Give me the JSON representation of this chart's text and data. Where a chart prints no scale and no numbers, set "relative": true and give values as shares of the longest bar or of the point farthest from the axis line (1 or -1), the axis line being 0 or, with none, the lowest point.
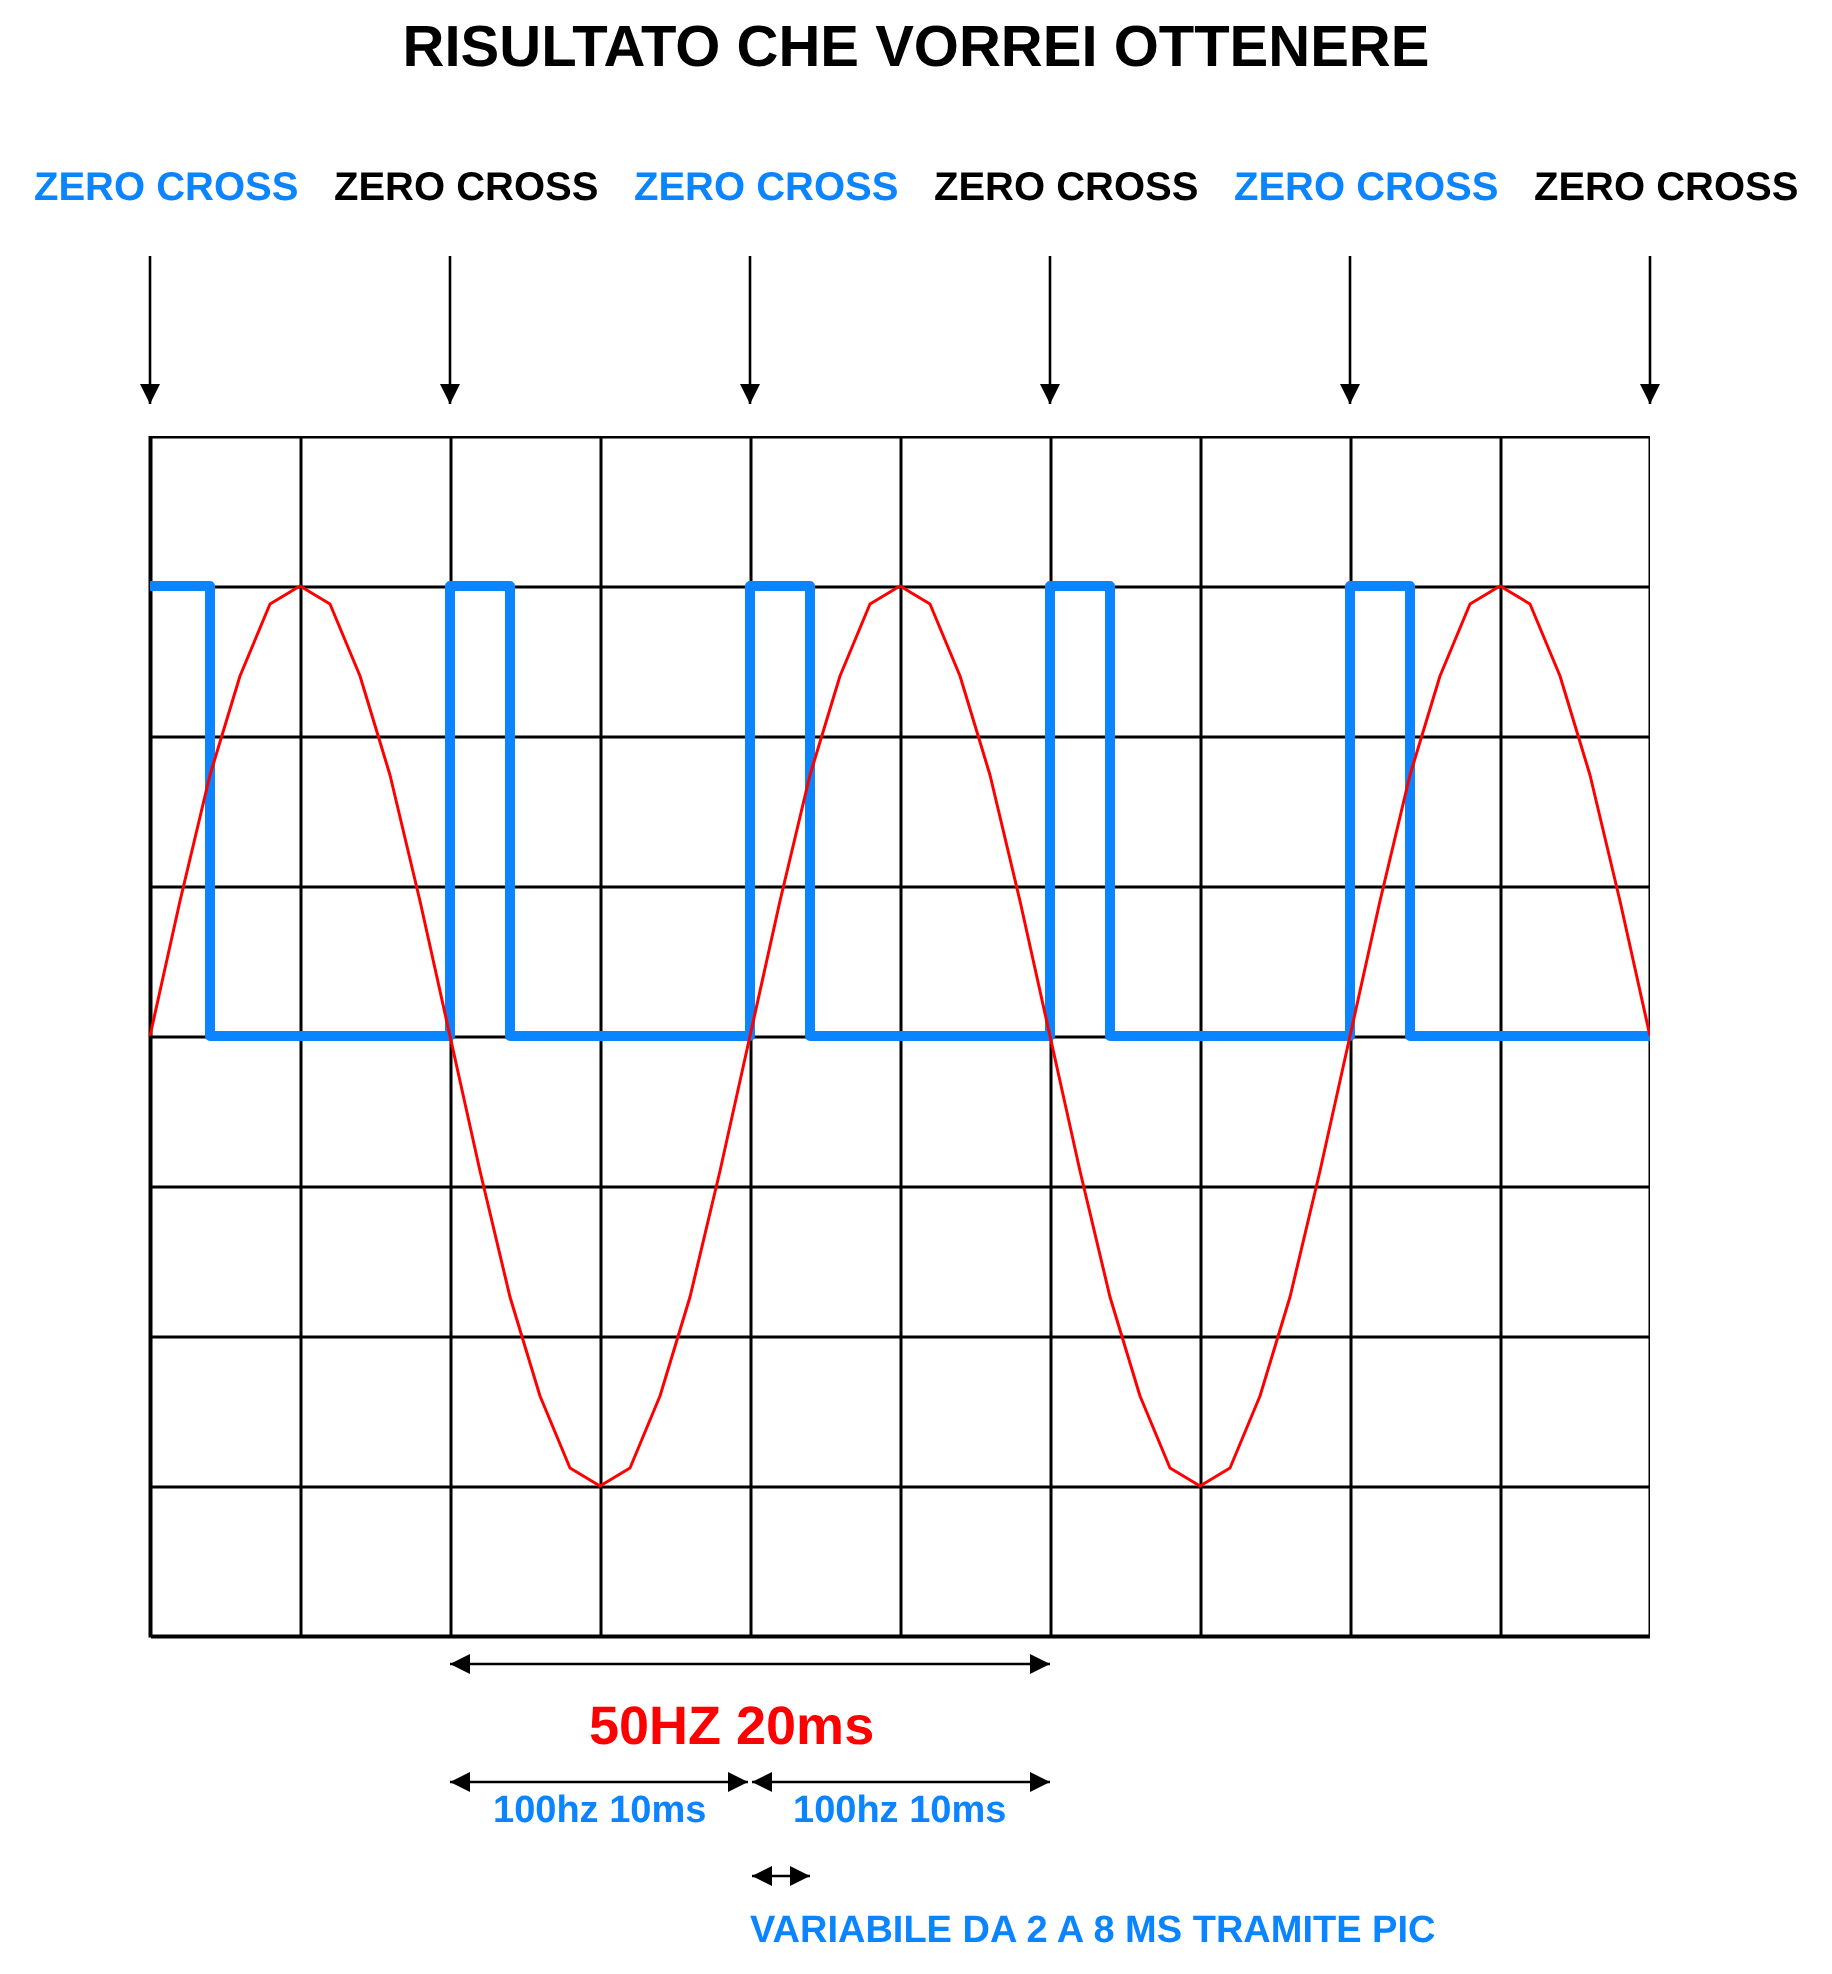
{
  "chart_data": {
    "type": "line",
    "title": "RISULTATO CHE VORREI OTTENERE",
    "relative": true,
    "grid": true,
    "categories": [
      null,
      null,
      null,
      null,
      null,
      null,
      null,
      null,
      null,
      null,
      null,
      null,
      null,
      null,
      null,
      null,
      null,
      null,
      null,
      null,
      null,
      null,
      null,
      null,
      null,
      null,
      null,
      null,
      null,
      null,
      null,
      null,
      null,
      null,
      null,
      null,
      null,
      null,
      null,
      null,
      null,
      null,
      null,
      null,
      null,
      null,
      null,
      null,
      null,
      null,
      null
    ],
    "series": [
      {
        "type": "step",
        "color": "#0a84ff",
        "values": [
          1,
          1,
          0.5,
          0.5,
          0.5,
          0.5,
          0.5,
          0.5,
          0.5,
          0.5,
          1,
          1,
          0.5,
          0.5,
          0.5,
          0.5,
          0.5,
          0.5,
          0.5,
          0.5,
          1,
          1,
          0.5,
          0.5,
          0.5,
          0.5,
          0.5,
          0.5,
          0.5,
          0.5,
          1,
          1,
          0.5,
          0.5,
          0.5,
          0.5,
          0.5,
          0.5,
          0.5,
          0.5,
          1,
          1,
          0.5,
          0.5,
          0.5,
          0.5,
          0.5,
          0.5,
          0.5,
          0.5,
          0.5
        ]
      },
      {
        "type": "line",
        "color": "#ff0000",
        "values": [
          0.5,
          0.65,
          0.79,
          0.9,
          0.98,
          1,
          0.98,
          0.9,
          0.79,
          0.65,
          0.5,
          0.35,
          0.21,
          0.1,
          0.02,
          0,
          0.02,
          0.1,
          0.21,
          0.35,
          0.5,
          0.65,
          0.79,
          0.9,
          0.98,
          1,
          0.98,
          0.9,
          0.79,
          0.65,
          0.5,
          0.35,
          0.21,
          0.1,
          0.02,
          0,
          0.02,
          0.1,
          0.21,
          0.35,
          0.5,
          0.65,
          0.79,
          0.9,
          0.98,
          1,
          0.98,
          0.9,
          0.79,
          0.65,
          0.5
        ]
      }
    ],
    "annotations": [
      "ZERO CROSS",
      "ZERO CROSS",
      "ZERO CROSS",
      "ZERO CROSS",
      "ZERO CROSS",
      "ZERO CROSS",
      "50HZ 20ms",
      "100hz 10ms",
      "100hz 10ms",
      "VARIABILE DA 2 A 8 MS TRAMITE PIC"
    ]
  }
}
